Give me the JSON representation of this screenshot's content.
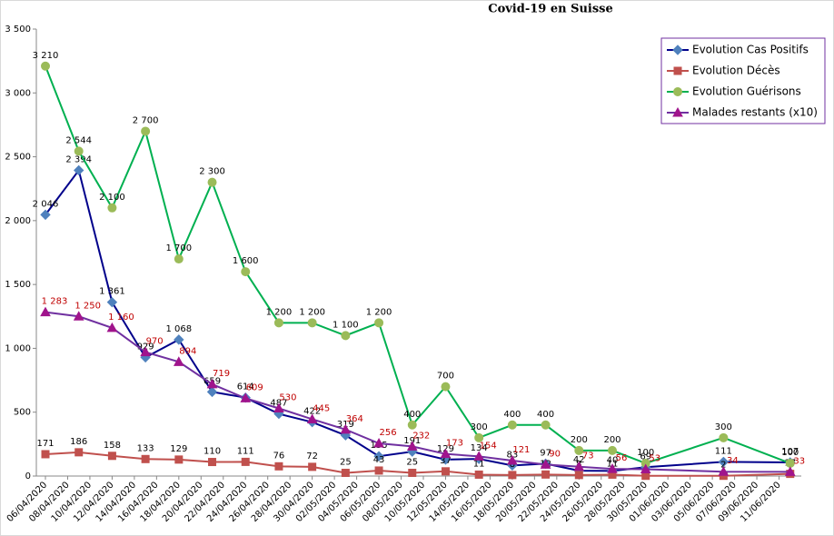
{
  "chart_data": {
    "type": "line",
    "title": "Covid-19 en Suisse",
    "x": [
      "06/04/2020",
      "09/04/2020",
      "12/04/2020",
      "15/04/2020",
      "18/04/2020",
      "21/04/2020",
      "24/04/2020",
      "27/04/2020",
      "30/04/2020",
      "03/05/2020",
      "06/05/2020",
      "09/05/2020",
      "12/05/2020",
      "15/05/2020",
      "18/05/2020",
      "21/05/2020",
      "24/05/2020",
      "27/05/2020",
      "30/05/2020",
      "06/06/2020",
      "12/06/2020"
    ],
    "xlim": [
      "06/04/2020",
      "13/06/2020"
    ],
    "xticks": [
      "06/04/2020",
      "08/04/2020",
      "10/04/2020",
      "12/04/2020",
      "14/04/2020",
      "16/04/2020",
      "18/04/2020",
      "20/04/2020",
      "22/04/2020",
      "24/04/2020",
      "26/04/2020",
      "28/04/2020",
      "30/04/2020",
      "02/05/2020",
      "04/05/2020",
      "06/05/2020",
      "08/05/2020",
      "10/05/2020",
      "12/05/2020",
      "14/05/2020",
      "16/05/2020",
      "18/05/2020",
      "20/05/2020",
      "22/05/2020",
      "24/05/2020",
      "26/05/2020",
      "28/05/2020",
      "30/05/2020",
      "01/06/2020",
      "03/06/2020",
      "05/06/2020",
      "07/06/2020",
      "09/06/2020",
      "11/06/2020"
    ],
    "ylim": [
      0,
      3500
    ],
    "yticks": [
      0,
      500,
      {
        "value": 1000,
        "label": "1 000"
      },
      {
        "value": 1500,
        "label": "1 500"
      },
      {
        "value": 2000,
        "label": "2 000"
      },
      {
        "value": 2500,
        "label": "2 500"
      },
      {
        "value": 3000,
        "label": "3 000"
      },
      {
        "value": 3500,
        "label": "3 500"
      }
    ],
    "legend": "top-right",
    "series": [
      {
        "name": "Evolution Cas Positifs",
        "color": "#00008b",
        "marker": "diamond",
        "marker_color": "#4f81bd",
        "label_color": "#000000",
        "values": [
          2046,
          2394,
          1361,
          929,
          1068,
          659,
          614,
          487,
          422,
          319,
          155,
          191,
          129,
          134,
          83,
          97,
          42,
          40,
          69,
          111,
          107
        ],
        "value_labels": [
          "2 046",
          "2 394",
          "1 361",
          "929",
          "1 068",
          "659",
          "614",
          "487",
          "422",
          "319",
          "155",
          "191",
          "129",
          "134",
          "83",
          "97",
          "42",
          "40",
          "69",
          "111",
          "107"
        ]
      },
      {
        "name": "Evolution Décès",
        "color": "#c0504d",
        "marker": "square",
        "marker_color": "#c0504d",
        "label_color": "#000000",
        "values": [
          171,
          186,
          158,
          133,
          129,
          110,
          111,
          76,
          72,
          25,
          43,
          25,
          37,
          11,
          8,
          12,
          8,
          11,
          2,
          2,
          17
        ]
      },
      {
        "name": "Evolution Guérisons",
        "color": "#00b050",
        "marker": "circle",
        "marker_color": "#9bbb59",
        "label_color": "#000000",
        "values": [
          3210,
          2544,
          2100,
          2700,
          1700,
          2300,
          1600,
          1200,
          1200,
          1100,
          1200,
          400,
          700,
          300,
          400,
          400,
          200,
          200,
          100,
          300,
          100
        ],
        "value_labels": [
          "3 210",
          "2 544",
          "2 100",
          "2 700",
          "1 700",
          "2 300",
          "1 600",
          "1 200",
          "1 200",
          "1 100",
          "1 200",
          "400",
          "700",
          "300",
          "400",
          "400",
          "200",
          "200",
          "100",
          "300",
          "100"
        ]
      },
      {
        "name": "Malades restants (x10)",
        "color": "#7030a0",
        "marker": "triangle",
        "marker_color": "#a0148c",
        "label_color": "#c00000",
        "values": [
          1283,
          1250,
          1160,
          970,
          894,
          719,
          609,
          530,
          445,
          364,
          256,
          232,
          173,
          154,
          121,
          90,
          73,
          56,
          53,
          34,
          33
        ],
        "value_labels": [
          "1 283",
          "1 250",
          "1 160",
          "970",
          "894",
          "719",
          "609",
          "530",
          "445",
          "364",
          "256",
          "232",
          "173",
          "154",
          "121",
          "90",
          "73",
          "56",
          "53",
          "34",
          "33"
        ]
      }
    ]
  }
}
